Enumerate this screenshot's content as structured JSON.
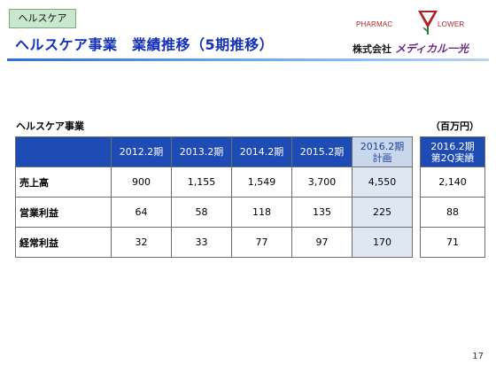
{
  "header": {
    "tag": "ヘルスケア",
    "title": "ヘルスケア事業　業績推移（5期推移）"
  },
  "logo": {
    "text_left": "PHARMAC",
    "text_right": "LOWER",
    "company_prefix": "株式会社",
    "company_name": "メディカル一光",
    "brand_color": "#b11f24"
  },
  "section_label": "ヘルスケア事業",
  "unit_label": "（百万円）",
  "table": {
    "columns": [
      "2012.2期",
      "2013.2期",
      "2014.2期",
      "2015.2期",
      "2016.2期 計画"
    ],
    "rows": [
      {
        "label": "売上高",
        "values": [
          "900",
          "1,155",
          "1,549",
          "3,700",
          "4,550"
        ]
      },
      {
        "label": "営業利益",
        "values": [
          "64",
          "58",
          "118",
          "135",
          "225"
        ]
      },
      {
        "label": "経常利益",
        "values": [
          "32",
          "33",
          "77",
          "97",
          "170"
        ]
      }
    ]
  },
  "side_table": {
    "header": "2016.2期 第2Q実績",
    "values": [
      "2,140",
      "88",
      "71"
    ]
  },
  "page_number": "17",
  "colors": {
    "header_fill": "#1f4bb4",
    "highlight_fill": "#dfe8f2",
    "title_color": "#1530b8",
    "tag_fill": "#c9e7ce"
  }
}
